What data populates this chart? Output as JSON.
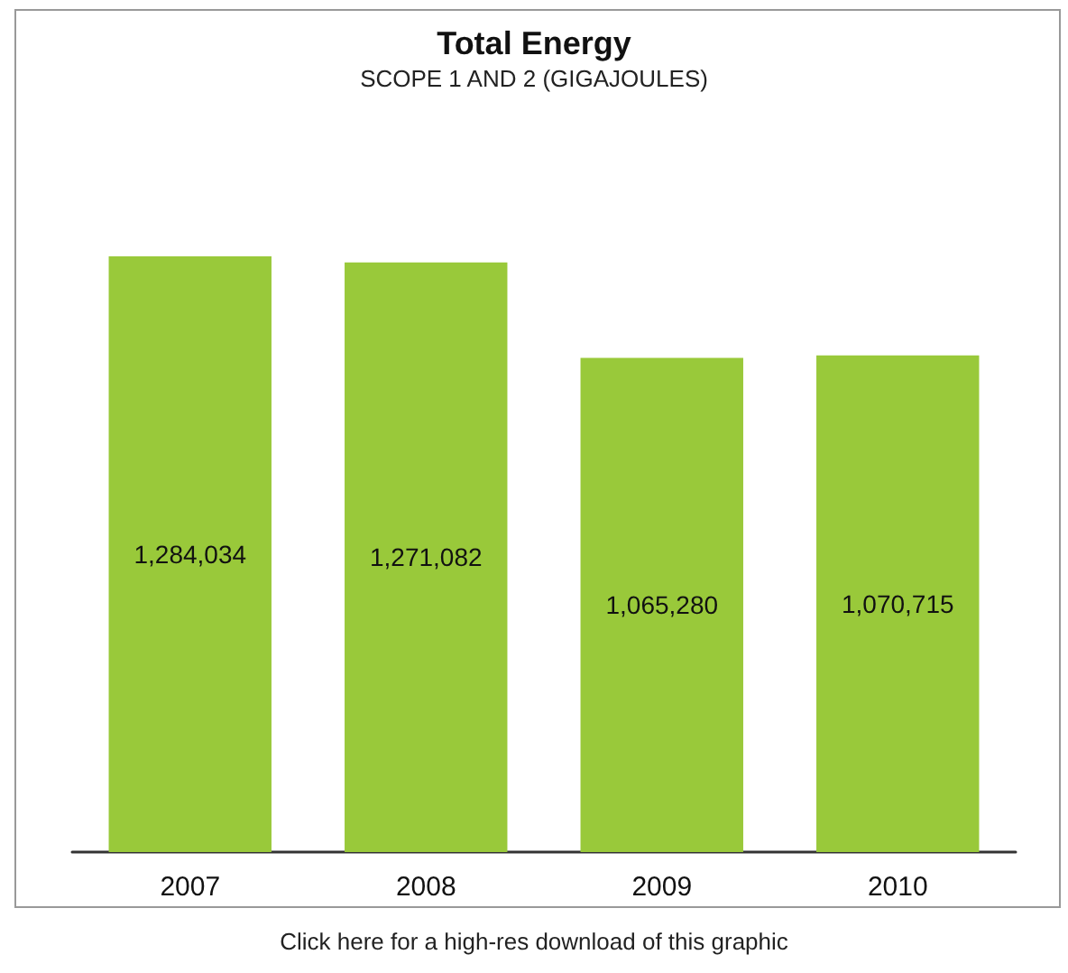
{
  "chart_data": {
    "type": "bar",
    "title": "Total Energy",
    "subtitle": "SCOPE 1 AND 2 (GIGAJOULES)",
    "categories": [
      "2007",
      "2008",
      "2009",
      "2010"
    ],
    "values": [
      1284034,
      1271082,
      1065280,
      1070715
    ],
    "value_labels": [
      "1,284,034",
      "1,271,082",
      "1,065,280",
      "1,070,715"
    ],
    "color": "#99c93a",
    "annotations": [
      "Click here for a high-res download of this graphic"
    ]
  }
}
